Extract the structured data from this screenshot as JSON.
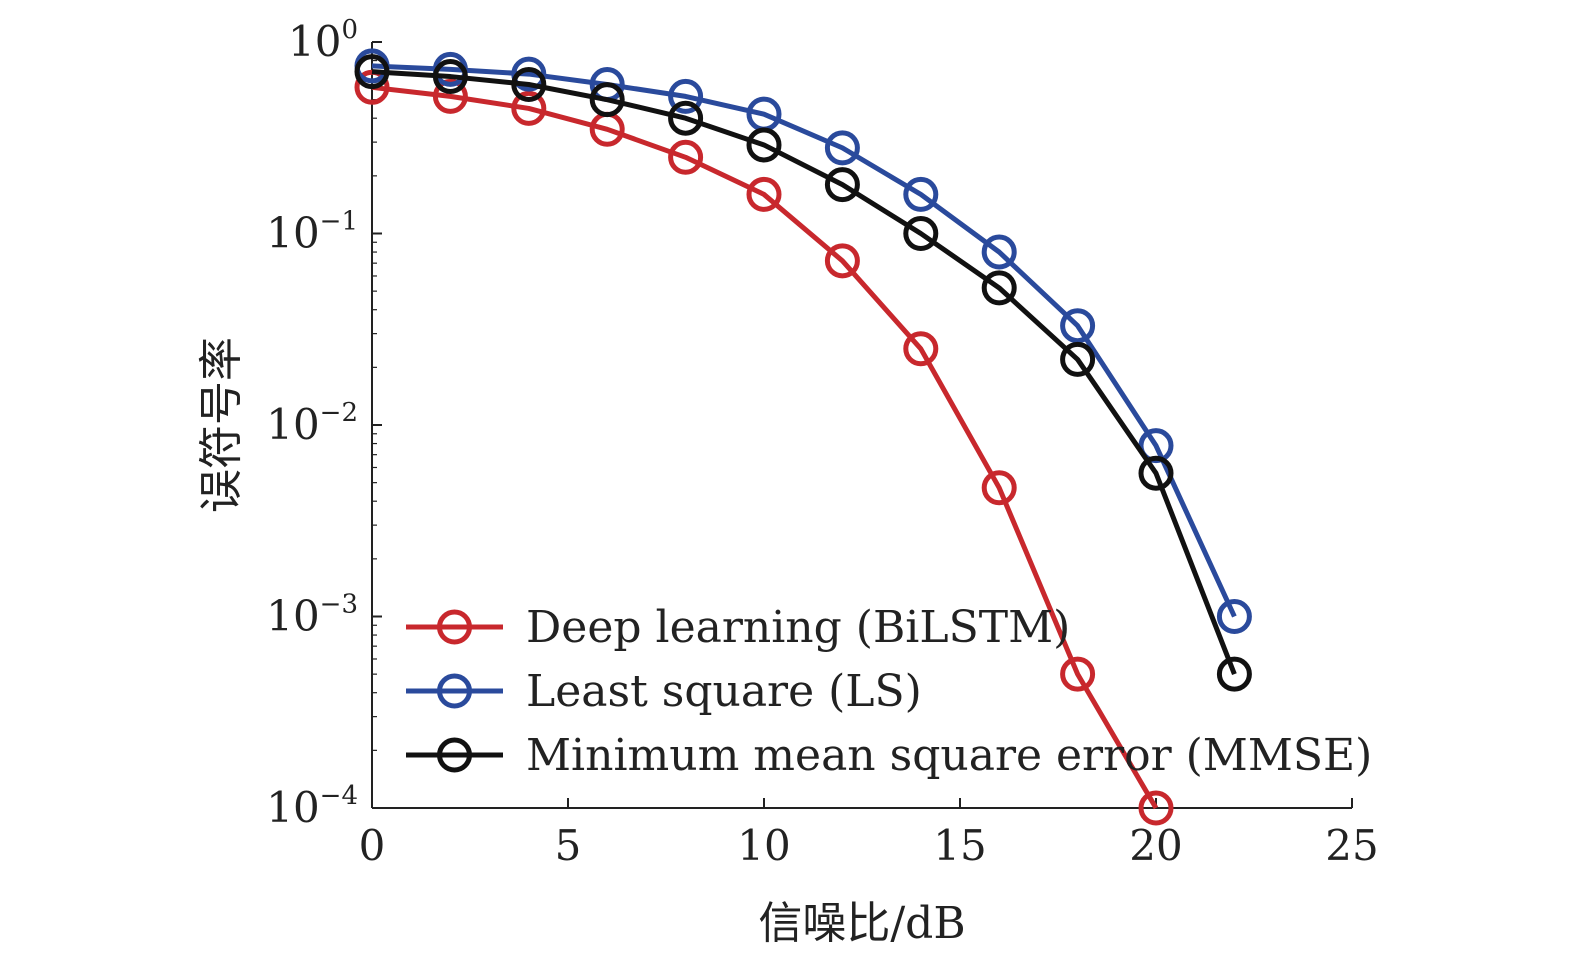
{
  "chart_data": {
    "type": "line",
    "title": "",
    "xlabel": "信噪比/dB",
    "ylabel": "误符号率",
    "xscale": "linear",
    "yscale": "log",
    "xlim": [
      0,
      25
    ],
    "ylim": [
      0.0001,
      1
    ],
    "xticks": [
      0,
      5,
      10,
      15,
      20,
      25
    ],
    "xtick_labels": [
      "0",
      "5",
      "10",
      "15",
      "20",
      "25"
    ],
    "yticks": [
      {
        "value": 1,
        "base": "10",
        "exp": "0"
      },
      {
        "value": 0.1,
        "base": "10",
        "exp": "−1"
      },
      {
        "value": 0.01,
        "base": "10",
        "exp": "−2"
      },
      {
        "value": 0.001,
        "base": "10",
        "exp": "−3"
      },
      {
        "value": 0.0001,
        "base": "10",
        "exp": "−4"
      }
    ],
    "grid": false,
    "legend_position": "bottom-left",
    "series": [
      {
        "name": "Deep learning (BiLSTM)",
        "color": "#c8282d",
        "marker": "circle",
        "x": [
          0,
          2,
          4,
          6,
          8,
          10,
          12,
          14,
          16,
          18,
          20
        ],
        "values": [
          0.58,
          0.52,
          0.45,
          0.35,
          0.25,
          0.16,
          0.072,
          0.025,
          0.0047,
          0.0005,
          0.0001
        ]
      },
      {
        "name": "Least square (LS)",
        "color": "#2a4a9c",
        "marker": "circle",
        "x": [
          0,
          2,
          4,
          6,
          8,
          10,
          12,
          14,
          16,
          18,
          20,
          22
        ],
        "values": [
          0.75,
          0.72,
          0.68,
          0.6,
          0.52,
          0.42,
          0.28,
          0.16,
          0.08,
          0.033,
          0.0078,
          0.001
        ]
      },
      {
        "name": "Minimum mean square error (MMSE)",
        "color": "#111111",
        "marker": "circle",
        "x": [
          0,
          2,
          4,
          6,
          8,
          10,
          12,
          14,
          16,
          18,
          20,
          22
        ],
        "values": [
          0.7,
          0.66,
          0.6,
          0.5,
          0.4,
          0.29,
          0.18,
          0.1,
          0.052,
          0.022,
          0.0056,
          0.0005
        ]
      }
    ]
  }
}
